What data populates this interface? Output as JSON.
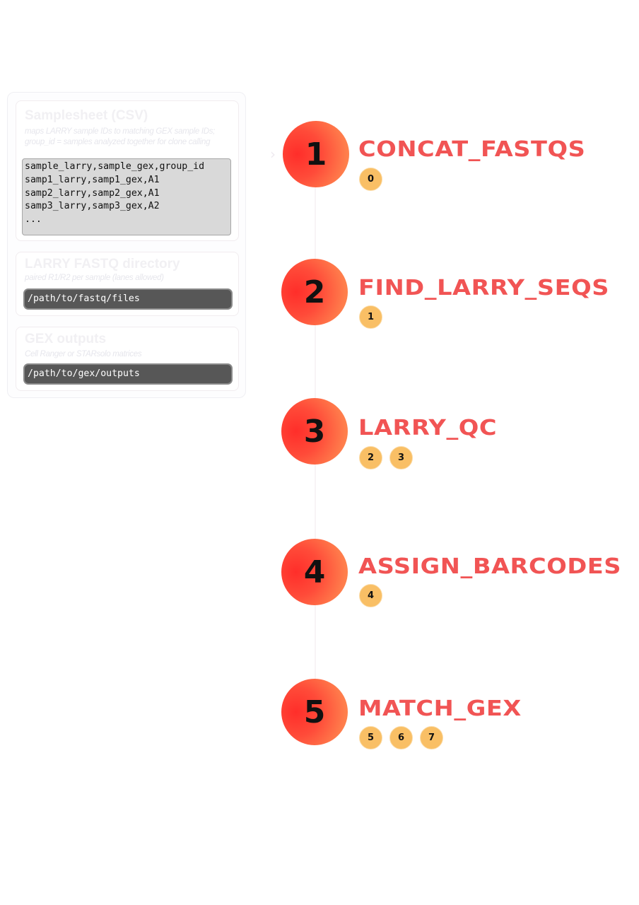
{
  "inputs": {
    "samplesheet": {
      "title": "Samplesheet (CSV)",
      "desc_line1": "maps LARRY sample IDs to matching GEX sample IDs;",
      "desc_line2": "group_id = samples analyzed together for clone calling",
      "lines": [
        "sample_larry,sample_gex,group_id",
        "samp1_larry,samp1_gex,A1",
        "samp2_larry,samp2_gex,A1",
        "samp3_larry,samp3_gex,A2",
        "..."
      ]
    },
    "fastq": {
      "title": "LARRY FASTQ directory",
      "desc": "paired R1/R2 per sample (lanes allowed)",
      "path": "/path/to/fastq/files"
    },
    "gex": {
      "title": "GEX outputs",
      "desc": "Cell Ranger or STARsolo matrices",
      "path": "/path/to/gex/outputs"
    }
  },
  "steps": [
    {
      "number": "1",
      "name": "CONCAT_FASTQS",
      "badges": [
        "0"
      ]
    },
    {
      "number": "2",
      "name": "FIND_LARRY_SEQS",
      "badges": [
        "1"
      ]
    },
    {
      "number": "3",
      "name": "LARRY_QC",
      "badges": [
        "2",
        "3"
      ]
    },
    {
      "number": "4",
      "name": "ASSIGN_BARCODES",
      "badges": [
        "4"
      ]
    },
    {
      "number": "5",
      "name": "MATCH_GEX",
      "badges": [
        "5",
        "6",
        "7"
      ]
    }
  ],
  "colors": {
    "step_title": "#f15454",
    "circle_start": "#ff2e2a",
    "circle_end": "#ff8f50",
    "badge": "#f9bf65"
  }
}
